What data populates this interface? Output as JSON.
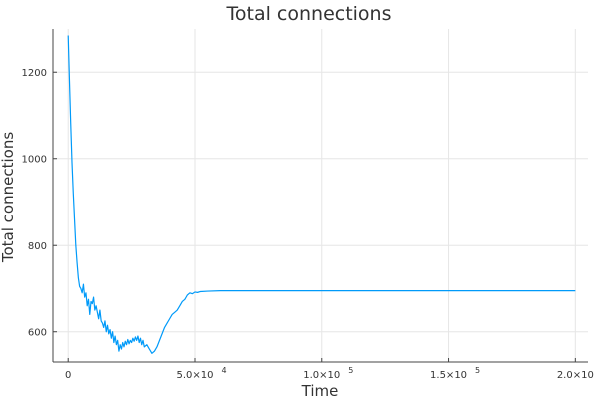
{
  "chart_data": {
    "type": "line",
    "title": "Total connections",
    "xlabel": "Time",
    "ylabel": "Total connections",
    "xlim": [
      -6000,
      205000
    ],
    "ylim": [
      530,
      1300
    ],
    "grid": true,
    "legend": "none",
    "x_ticks": [
      {
        "value": 0,
        "mantissa": "0",
        "exponent": ""
      },
      {
        "value": 50000,
        "mantissa": "5.0×10",
        "exponent": "4"
      },
      {
        "value": 100000,
        "mantissa": "1.0×10",
        "exponent": "5"
      },
      {
        "value": 150000,
        "mantissa": "1.5×10",
        "exponent": "5"
      },
      {
        "value": 200000,
        "mantissa": "2.0×10",
        "exponent": "5"
      }
    ],
    "y_ticks": [
      {
        "value": 600,
        "label": "600"
      },
      {
        "value": 800,
        "label": "800"
      },
      {
        "value": 1000,
        "label": "1000"
      },
      {
        "value": 1200,
        "label": "1200"
      }
    ],
    "series": [
      {
        "color": "#009af9",
        "x": [
          0,
          500,
          1000,
          1500,
          2000,
          2500,
          3000,
          3500,
          4000,
          4500,
          5000,
          5500,
          6000,
          6500,
          7000,
          7500,
          8000,
          8500,
          9000,
          9500,
          10000,
          10500,
          11000,
          11500,
          12000,
          12500,
          13000,
          13500,
          14000,
          14500,
          15000,
          15500,
          16000,
          16500,
          17000,
          17500,
          18000,
          18500,
          19000,
          19500,
          20000,
          20500,
          21000,
          21500,
          22000,
          22500,
          23000,
          23500,
          24000,
          24500,
          25000,
          25500,
          26000,
          26500,
          27000,
          27500,
          28000,
          28500,
          29000,
          29500,
          30000,
          31000,
          32000,
          33000,
          34000,
          35000,
          36000,
          37000,
          38000,
          39000,
          40000,
          41000,
          42000,
          43000,
          44000,
          45000,
          46000,
          46500,
          47000,
          48000,
          49000,
          50000,
          51000,
          52000,
          55000,
          60000,
          80000,
          100000,
          120000,
          150000,
          180000,
          200000
        ],
        "y": [
          1285,
          1180,
          1080,
          990,
          920,
          860,
          800,
          760,
          725,
          705,
          700,
          690,
          710,
          680,
          690,
          660,
          675,
          640,
          670,
          665,
          680,
          650,
          660,
          645,
          630,
          650,
          625,
          620,
          610,
          625,
          600,
          615,
          595,
          605,
          585,
          600,
          575,
          590,
          570,
          580,
          555,
          570,
          560,
          575,
          565,
          578,
          570,
          582,
          572,
          580,
          575,
          585,
          578,
          588,
          580,
          590,
          575,
          585,
          570,
          580,
          565,
          570,
          560,
          550,
          555,
          565,
          580,
          595,
          610,
          620,
          630,
          640,
          645,
          650,
          660,
          670,
          675,
          680,
          685,
          690,
          688,
          692,
          691,
          693,
          694,
          695,
          695,
          695,
          695,
          695,
          695,
          695
        ],
        "values_note_placeholder": ""
      }
    ]
  }
}
